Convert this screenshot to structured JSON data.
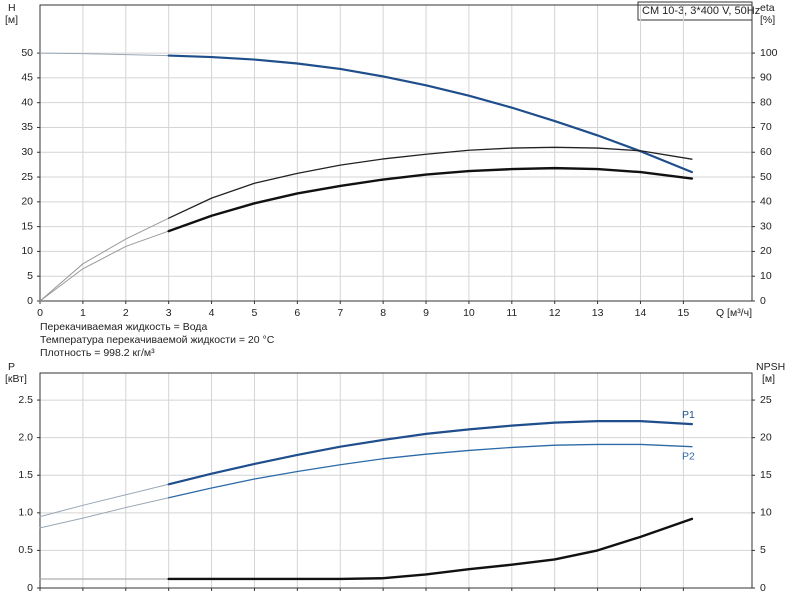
{
  "chart_data": [
    {
      "type": "line",
      "title": "CM 10-3, 3*400 V, 50Hz",
      "y_label": "H",
      "y_unit": "[м]",
      "y2_label": "eta",
      "y2_unit": "[%]",
      "x_label": "Q [м³/ч]",
      "xlim": [
        0,
        16.6
      ],
      "xticks": [
        0,
        1,
        2,
        3,
        4,
        5,
        6,
        7,
        8,
        9,
        10,
        11,
        12,
        13,
        14,
        15
      ],
      "ylim": [
        0,
        59.7
      ],
      "yticks": [
        0,
        5,
        10,
        15,
        20,
        25,
        30,
        35,
        40,
        45,
        50
      ],
      "y2lim": [
        0,
        119.4
      ],
      "y2ticks": [
        0,
        10,
        20,
        30,
        40,
        50,
        60,
        70,
        80,
        90,
        100
      ],
      "grid": true,
      "x_tick_labels": true,
      "annotations": [
        "Перекачиваемая жидкость = Вода",
        "Температура перекачиваемой жидкости = 20 °C",
        "Плотность = 998.2 кг/м³"
      ],
      "series": [
        {
          "color": "#9aa7b4",
          "width": 1,
          "x": [
            0,
            1,
            2,
            3
          ],
          "values": [
            50,
            49.9,
            49.7,
            49.5
          ]
        },
        {
          "color": "#1f4e8c",
          "width": 2.2,
          "x": [
            3,
            4,
            5,
            6,
            7,
            8,
            9,
            10,
            11,
            12,
            13,
            14,
            15.2
          ],
          "values": [
            49.5,
            49.2,
            48.7,
            47.9,
            46.8,
            45.3,
            43.5,
            41.4,
            39,
            36.3,
            33.4,
            30.2,
            26
          ]
        },
        {
          "color": "#9a9a9a",
          "width": 1,
          "axis": "y2",
          "x": [
            0,
            1,
            2,
            3
          ],
          "values": [
            0,
            15,
            25,
            33.4
          ]
        },
        {
          "color": "#222222",
          "width": 1.3,
          "axis": "y2",
          "x": [
            3,
            4,
            5,
            6,
            7,
            8,
            9,
            10,
            11,
            12,
            13,
            14,
            15.2
          ],
          "values": [
            33.4,
            41.5,
            47.5,
            51.5,
            54.8,
            57.3,
            59.2,
            60.8,
            61.7,
            62,
            61.7,
            60.6,
            57.2
          ]
        },
        {
          "color": "#9a9a9a",
          "width": 1,
          "axis": "y2",
          "x": [
            0,
            1,
            2,
            3
          ],
          "values": [
            0,
            13,
            22,
            28.2
          ]
        },
        {
          "color": "#111111",
          "width": 2.4,
          "axis": "y2",
          "x": [
            3,
            4,
            5,
            6,
            7,
            8,
            9,
            10,
            11,
            12,
            13,
            14,
            15.2
          ],
          "values": [
            28.2,
            34.4,
            39.4,
            43.4,
            46.4,
            49,
            51,
            52.4,
            53.2,
            53.6,
            53.2,
            52,
            49.4
          ]
        }
      ]
    },
    {
      "type": "line",
      "y_label": "P",
      "y_unit": "[кВт]",
      "y2_label": "NPSH",
      "y2_unit": "[м]",
      "xlim": [
        0,
        16.6
      ],
      "xticks": [
        0,
        1,
        2,
        3,
        4,
        5,
        6,
        7,
        8,
        9,
        10,
        11,
        12,
        13,
        14,
        15
      ],
      "ylim": [
        0,
        2.86
      ],
      "yticks": [
        0,
        0.5,
        {
          "value": 1,
          "label": "1.0"
        },
        1.5,
        {
          "value": 2,
          "label": "2.0"
        },
        2.5
      ],
      "y2lim": [
        0,
        28.6
      ],
      "y2ticks": [
        0,
        5,
        10,
        15,
        20,
        25
      ],
      "grid": true,
      "x_tick_labels": false,
      "series": [
        {
          "color": "#9aa7b4",
          "width": 1,
          "x": [
            0,
            1,
            2,
            3
          ],
          "values": [
            0.95,
            1.1,
            1.24,
            1.38
          ]
        },
        {
          "name": "P1",
          "color": "#1f4e8c",
          "width": 2.2,
          "x": [
            3,
            4,
            5,
            6,
            7,
            8,
            9,
            10,
            11,
            12,
            13,
            14,
            15.2
          ],
          "values": [
            1.38,
            1.52,
            1.65,
            1.77,
            1.88,
            1.97,
            2.05,
            2.11,
            2.16,
            2.2,
            2.22,
            2.22,
            2.18
          ]
        },
        {
          "color": "#9aa7b4",
          "width": 1,
          "x": [
            0,
            1,
            2,
            3
          ],
          "values": [
            0.8,
            0.93,
            1.07,
            1.2
          ]
        },
        {
          "name": "P2",
          "color": "#2c6aa8",
          "width": 1.3,
          "x": [
            3,
            4,
            5,
            6,
            7,
            8,
            9,
            10,
            11,
            12,
            13,
            14,
            15.2
          ],
          "values": [
            1.2,
            1.33,
            1.45,
            1.55,
            1.64,
            1.72,
            1.78,
            1.83,
            1.87,
            1.9,
            1.91,
            1.91,
            1.88
          ]
        },
        {
          "color": "#9a9a9a",
          "width": 1,
          "axis": "y2",
          "x": [
            0,
            1,
            2,
            3
          ],
          "values": [
            1.2,
            1.2,
            1.2,
            1.2
          ]
        },
        {
          "color": "#111111",
          "width": 2.4,
          "axis": "y2",
          "x": [
            3,
            4,
            5,
            6,
            7,
            8,
            9,
            10,
            11,
            12,
            13,
            14,
            15.2
          ],
          "values": [
            1.2,
            1.2,
            1.2,
            1.2,
            1.2,
            1.3,
            1.8,
            2.5,
            3.1,
            3.8,
            5,
            6.8,
            9.2
          ]
        }
      ]
    }
  ]
}
